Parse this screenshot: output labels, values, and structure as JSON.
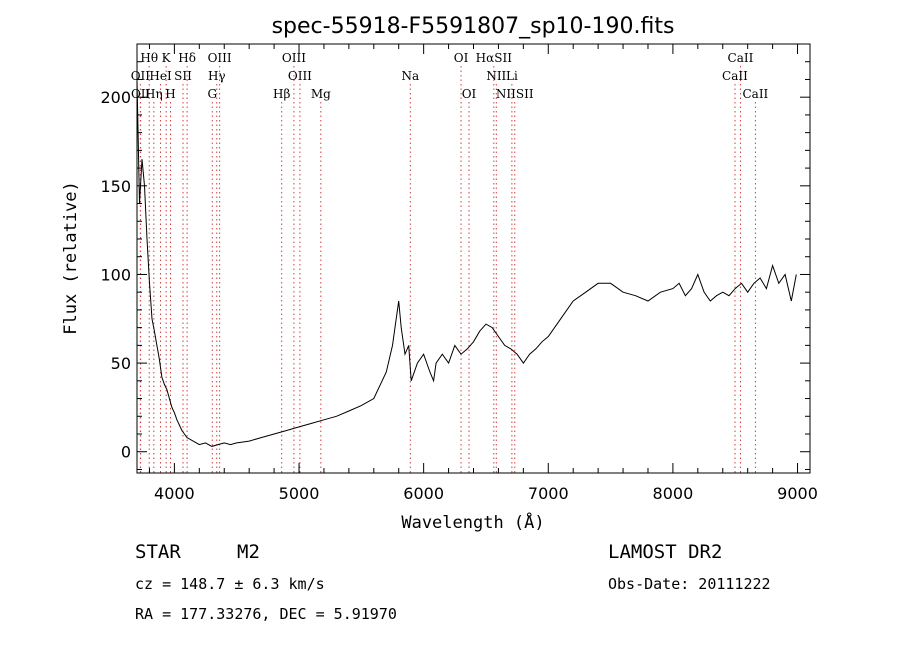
{
  "chart_data": {
    "type": "line",
    "title": "spec-55918-F5591807_sp10-190.fits",
    "xlabel": "Wavelength (Å)",
    "ylabel": "Flux (relative)",
    "xlim": [
      3700,
      9100
    ],
    "ylim": [
      -12,
      230
    ],
    "x_ticks": [
      4000,
      5000,
      6000,
      7000,
      8000,
      9000
    ],
    "y_ticks": [
      0,
      50,
      100,
      150,
      200
    ],
    "grid": false,
    "series": [
      {
        "x": [
          3700,
          3720,
          3740,
          3760,
          3780,
          3800,
          3820,
          3840,
          3860,
          3880,
          3900,
          3920,
          3940,
          3960,
          3980,
          4000,
          4020,
          4040,
          4060,
          4080,
          4100,
          4150,
          4200,
          4250,
          4300,
          4350,
          4400,
          4450,
          4500,
          4600,
          4700,
          4800,
          4900,
          5000,
          5100,
          5200,
          5300,
          5400,
          5500,
          5600,
          5700,
          5750,
          5780,
          5800,
          5820,
          5850,
          5880,
          5900,
          5950,
          6000,
          6050,
          6080,
          6100,
          6150,
          6200,
          6250,
          6300,
          6350,
          6400,
          6450,
          6500,
          6550,
          6600,
          6650,
          6700,
          6750,
          6800,
          6850,
          6900,
          6950,
          7000,
          7100,
          7200,
          7300,
          7400,
          7500,
          7600,
          7700,
          7800,
          7900,
          8000,
          8050,
          8100,
          8150,
          8200,
          8250,
          8300,
          8350,
          8400,
          8450,
          8500,
          8550,
          8600,
          8650,
          8700,
          8750,
          8800,
          8850,
          8900,
          8950,
          8990
        ],
        "y": [
          210,
          140,
          165,
          150,
          120,
          95,
          75,
          68,
          60,
          52,
          42,
          38,
          35,
          30,
          25,
          22,
          18,
          15,
          12,
          10,
          8,
          6,
          4,
          5,
          3,
          4,
          5,
          4,
          5,
          6,
          8,
          10,
          12,
          14,
          16,
          18,
          20,
          23,
          26,
          30,
          45,
          60,
          75,
          85,
          70,
          55,
          60,
          40,
          50,
          55,
          45,
          40,
          50,
          55,
          50,
          60,
          55,
          58,
          62,
          68,
          72,
          70,
          65,
          60,
          58,
          55,
          50,
          55,
          58,
          62,
          65,
          75,
          85,
          90,
          95,
          95,
          90,
          88,
          85,
          90,
          92,
          95,
          88,
          92,
          100,
          90,
          85,
          88,
          90,
          88,
          92,
          95,
          90,
          95,
          98,
          92,
          105,
          95,
          100,
          85,
          100
        ]
      }
    ],
    "lines": [
      {
        "label": "Hθ",
        "x": 3798,
        "row": 1
      },
      {
        "label": "K",
        "x": 3934,
        "row": 1
      },
      {
        "label": "Hδ",
        "x": 4102,
        "row": 1
      },
      {
        "label": "OIII",
        "x": 4363,
        "row": 1
      },
      {
        "label": "OIII",
        "x": 4959,
        "row": 1
      },
      {
        "label": "OI",
        "x": 6300,
        "row": 1
      },
      {
        "label": "HαSII",
        "x": 6563,
        "row": 1
      },
      {
        "label": "CaII",
        "x": 8542,
        "row": 1
      },
      {
        "label": "OII",
        "x": 3727,
        "row": 2
      },
      {
        "label": "HeI",
        "x": 3889,
        "row": 2
      },
      {
        "label": "SII",
        "x": 4069,
        "row": 2
      },
      {
        "label": "Hγ",
        "x": 4340,
        "row": 2
      },
      {
        "label": "OIII",
        "x": 5007,
        "row": 2
      },
      {
        "label": "Na",
        "x": 5893,
        "row": 2
      },
      {
        "label": "NII",
        "x": 6583,
        "row": 2
      },
      {
        "label": "Li",
        "x": 6708,
        "row": 2
      },
      {
        "label": "CaII",
        "x": 8498,
        "row": 2
      },
      {
        "label": "OII",
        "x": 3729,
        "row": 3
      },
      {
        "label": "Hη",
        "x": 3835,
        "row": 3
      },
      {
        "label": "H",
        "x": 3969,
        "row": 3
      },
      {
        "label": "G",
        "x": 4304,
        "row": 3
      },
      {
        "label": "Hβ",
        "x": 4861,
        "row": 3
      },
      {
        "label": "Mg",
        "x": 5175,
        "row": 3
      },
      {
        "label": "OI",
        "x": 6364,
        "row": 3
      },
      {
        "label": "NIISII",
        "x": 6731,
        "row": 3
      },
      {
        "label": "CaII",
        "x": 8662,
        "row": 3
      }
    ]
  },
  "info": {
    "class": "STAR",
    "subclass": "M2",
    "survey": "LAMOST DR2",
    "cz": "cz = 148.7 ± 6.3 km/s",
    "obs_date": "Obs-Date: 20111222",
    "radec": "RA = 177.33276, DEC =   5.91970"
  }
}
